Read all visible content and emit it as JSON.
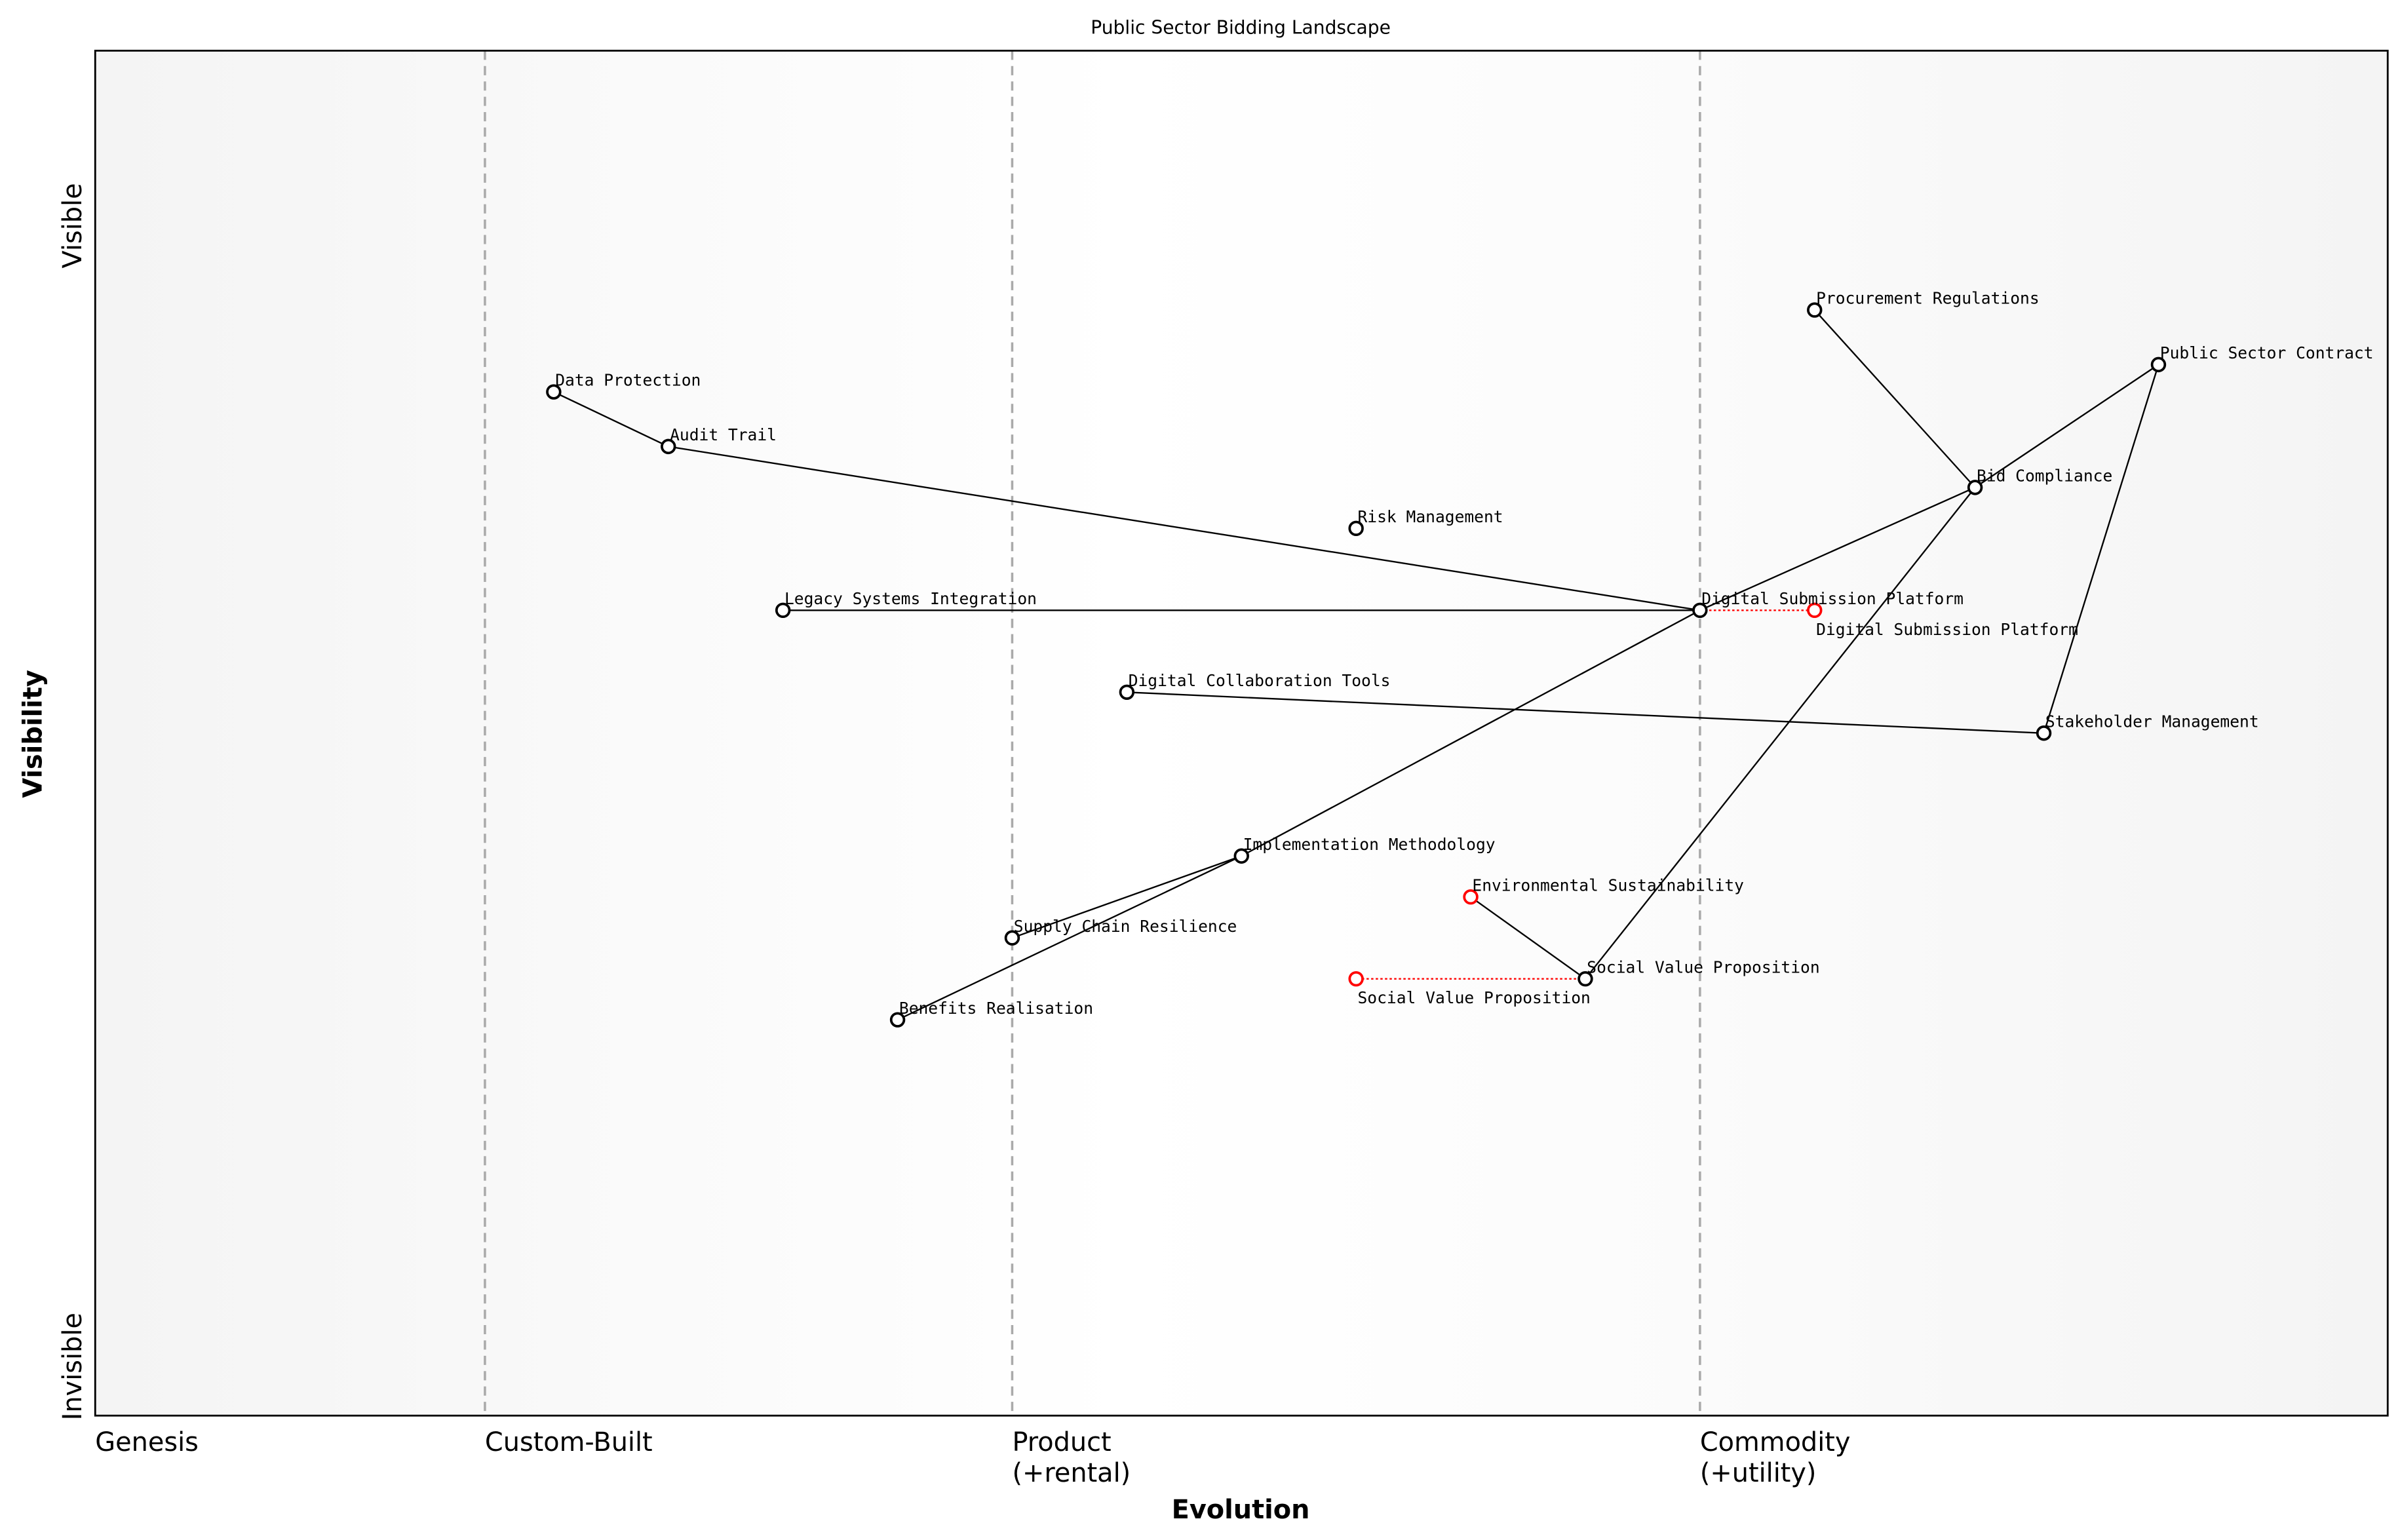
{
  "title": "Public Sector Bidding Landscape",
  "x_axis": {
    "label": "Evolution",
    "stages": [
      {
        "label": [
          "Genesis"
        ],
        "at": 0
      },
      {
        "label": [
          "Custom-Built"
        ],
        "at": 0.17
      },
      {
        "label": [
          "Product",
          "(+rental)"
        ],
        "at": 0.4
      },
      {
        "label": [
          "Commodity",
          "(+utility)"
        ],
        "at": 0.7
      }
    ]
  },
  "y_axis": {
    "label": "Visibility",
    "top": "Visible",
    "bottom": "Invisible"
  },
  "colors": {
    "node": "#000000",
    "evolved": "#ff0000",
    "stage_line": "#aaaaaa",
    "band": "#f5f5f5"
  },
  "chart_data": {
    "type": "wardley-map",
    "xlim": [
      0,
      1
    ],
    "ylim": [
      0,
      1
    ],
    "components": [
      {
        "name": "Procurement Regulations",
        "evolution": 0.75,
        "visibility": 0.81
      },
      {
        "name": "Public Sector Contract",
        "evolution": 0.9,
        "visibility": 0.77
      },
      {
        "name": "Data Protection",
        "evolution": 0.2,
        "visibility": 0.75
      },
      {
        "name": "Audit Trail",
        "evolution": 0.25,
        "visibility": 0.71
      },
      {
        "name": "Bid Compliance",
        "evolution": 0.82,
        "visibility": 0.68
      },
      {
        "name": "Risk Management",
        "evolution": 0.55,
        "visibility": 0.65
      },
      {
        "name": "Digital Submission Platform",
        "evolution": 0.7,
        "visibility": 0.59
      },
      {
        "name": "Legacy Systems Integration",
        "evolution": 0.3,
        "visibility": 0.59
      },
      {
        "name": "Digital Collaboration Tools",
        "evolution": 0.45,
        "visibility": 0.53
      },
      {
        "name": "Stakeholder Management",
        "evolution": 0.85,
        "visibility": 0.5
      },
      {
        "name": "Implementation Methodology",
        "evolution": 0.5,
        "visibility": 0.41
      },
      {
        "name": "Supply Chain Resilience",
        "evolution": 0.4,
        "visibility": 0.35
      },
      {
        "name": "Social Value Proposition",
        "evolution": 0.65,
        "visibility": 0.32
      },
      {
        "name": "Benefits Realisation",
        "evolution": 0.35,
        "visibility": 0.29
      },
      {
        "name": "Environmental Sustainability",
        "evolution": 0.6,
        "visibility": 0.38
      }
    ],
    "evolved": [
      {
        "name": "Digital Submission Platform",
        "evolution": 0.75,
        "visibility": 0.59,
        "from": 0.7
      },
      {
        "name": "Social Value Proposition",
        "evolution": 0.55,
        "visibility": 0.32,
        "from": 0.65
      },
      {
        "name": "Environmental Sustainability",
        "evolution": 0.6,
        "visibility": 0.38,
        "from": null
      }
    ],
    "links": [
      [
        "Procurement Regulations",
        "Bid Compliance"
      ],
      [
        "Public Sector Contract",
        "Bid Compliance"
      ],
      [
        "Public Sector Contract",
        "Stakeholder Management"
      ],
      [
        "Bid Compliance",
        "Digital Submission Platform"
      ],
      [
        "Bid Compliance",
        "Social Value Proposition"
      ],
      [
        "Data Protection",
        "Audit Trail"
      ],
      [
        "Audit Trail",
        "Digital Submission Platform"
      ],
      [
        "Legacy Systems Integration",
        "Digital Submission Platform"
      ],
      [
        "Digital Submission Platform",
        "Implementation Methodology"
      ],
      [
        "Digital Collaboration Tools",
        "Stakeholder Management"
      ],
      [
        "Implementation Methodology",
        "Supply Chain Resilience"
      ],
      [
        "Implementation Methodology",
        "Benefits Realisation"
      ],
      [
        "Social Value Proposition",
        "Environmental Sustainability"
      ]
    ]
  }
}
